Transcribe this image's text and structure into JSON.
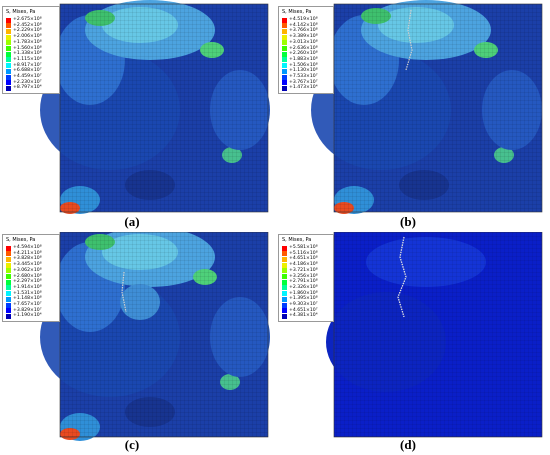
{
  "legend_colors": [
    "#ff0000",
    "#ff5a00",
    "#ffb400",
    "#ecf000",
    "#9cff00",
    "#3dff00",
    "#00ff3c",
    "#00ff9b",
    "#00f5ff",
    "#0099ff",
    "#003dff",
    "#0000ff",
    "#0000b4"
  ],
  "panels": [
    {
      "caption": "(a)",
      "legend_title": "S, Mises, Pa",
      "legend_values": [
        "+2.675×10⁸",
        "+2.452×10⁸",
        "+2.229×10⁸",
        "+2.006×10⁸",
        "+1.783×10⁸",
        "+1.560×10⁸",
        "+1.338×10⁸",
        "+1.115×10⁸",
        "+8.917×10⁷",
        "+6.688×10⁷",
        "+4.459×10⁷",
        "+2.230×10⁷",
        "+8.797×10⁴"
      ]
    },
    {
      "caption": "(b)",
      "legend_title": "S, Mises, Pa",
      "legend_values": [
        "+4.519×10⁸",
        "+4.142×10⁸",
        "+3.766×10⁸",
        "+3.389×10⁸",
        "+3.013×10⁸",
        "+2.636×10⁸",
        "+2.260×10⁸",
        "+1.883×10⁸",
        "+1.506×10⁸",
        "+1.130×10⁸",
        "+7.533×10⁷",
        "+3.767×10⁷",
        "+1.473×10⁴"
      ]
    },
    {
      "caption": "(c)",
      "legend_title": "S, Mises, Pa",
      "legend_values": [
        "+4.594×10⁸",
        "+4.211×10⁸",
        "+3.828×10⁸",
        "+3.445×10⁸",
        "+3.062×10⁸",
        "+2.680×10⁸",
        "+2.297×10⁸",
        "+1.914×10⁸",
        "+1.531×10⁸",
        "+1.148×10⁸",
        "+7.657×10⁷",
        "+3.829×10⁷",
        "+1.190×10⁴"
      ]
    },
    {
      "caption": "(d)",
      "legend_title": "S, Mises, Pa",
      "legend_values": [
        "+5.581×10⁸",
        "+5.116×10⁸",
        "+4.651×10⁸",
        "+4.186×10⁸",
        "+3.721×10⁸",
        "+3.256×10⁸",
        "+2.791×10⁸",
        "+2.326×10⁸",
        "+1.860×10⁸",
        "+1.395×10⁸",
        "+9.303×10⁷",
        "+4.651×10⁷",
        "+4.381×10⁴"
      ]
    }
  ]
}
